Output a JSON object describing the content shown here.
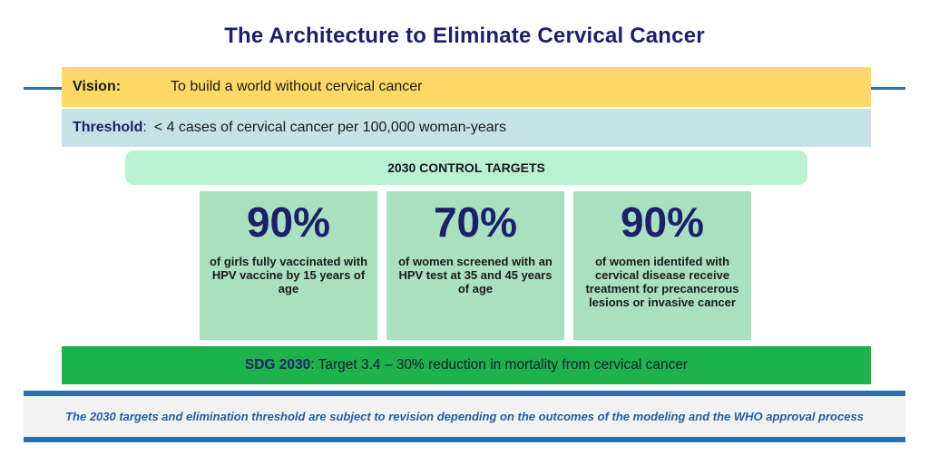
{
  "title": "The Architecture to Eliminate Cervical Cancer",
  "vision": {
    "label": "Vision:",
    "text": "To build a world without cervical cancer"
  },
  "threshold": {
    "label": "Threshold",
    "colon": ":",
    "text": "< 4 cases of cervical cancer per 100,000 woman-years"
  },
  "control_targets": {
    "heading": "2030 CONTROL TARGETS",
    "targets": [
      {
        "percent": "90%",
        "description": "of girls fully vaccinated with HPV vaccine by 15 years of age"
      },
      {
        "percent": "70%",
        "description": "of women screened with an HPV test at 35 and 45 years of age"
      },
      {
        "percent": "90%",
        "description": "of women identifed with cervical disease receive treatment for precancerous lesions or invasive cancer"
      }
    ]
  },
  "sdg": {
    "label": "SDG 2030",
    "text": ": Target 3.4 – 30% reduction in mortality from cervical cancer"
  },
  "footnote": "The 2030 targets and elimination threshold are subject to revision depending on the outcomes of the modeling and the WHO approval process",
  "colors": {
    "title": "#1b1f6e",
    "vision_bg": "#ffd966",
    "threshold_bg": "#c5e3e6",
    "control_bg": "#b9f2d0",
    "target_bg": "#a9e1be",
    "sdg_bg": "#1eb24c",
    "footnote_text": "#1f5fa8",
    "rule": "#2a6fb0"
  }
}
